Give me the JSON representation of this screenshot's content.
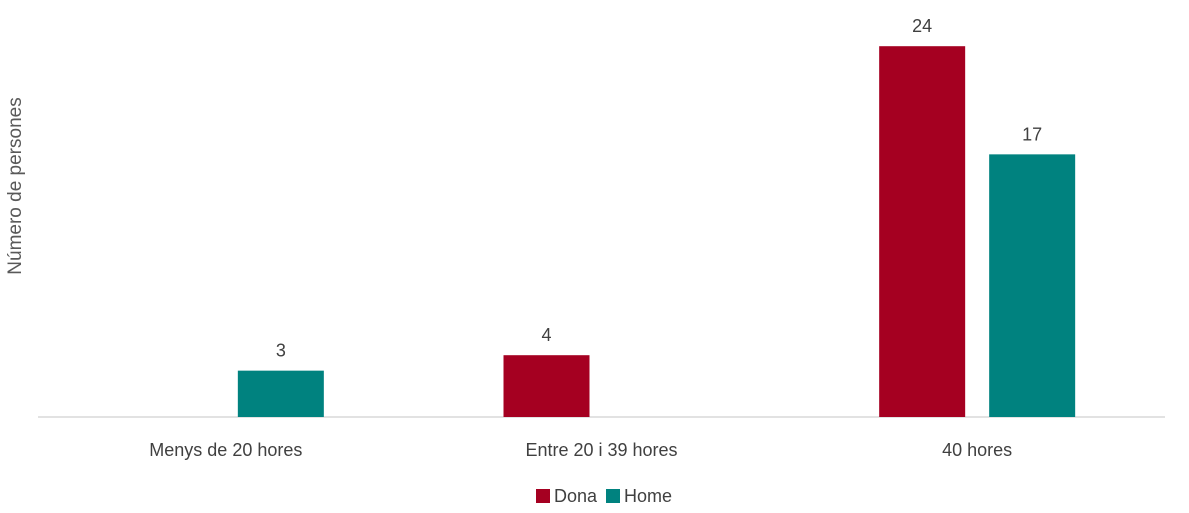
{
  "chart_data": {
    "type": "bar",
    "title": "",
    "xlabel": "",
    "ylabel": "Número de persones",
    "categories": [
      "Menys de 20 hores",
      "Entre 20 i 39 hores",
      "40 hores"
    ],
    "series": [
      {
        "name": "Dona",
        "color": "#A50021",
        "values": [
          0,
          4,
          24
        ]
      },
      {
        "name": "Home",
        "color": "#00827F",
        "values": [
          3,
          0,
          17
        ]
      }
    ],
    "ylim": [
      0,
      24
    ],
    "grid": false,
    "legend": "bottom",
    "data_labels": true
  }
}
